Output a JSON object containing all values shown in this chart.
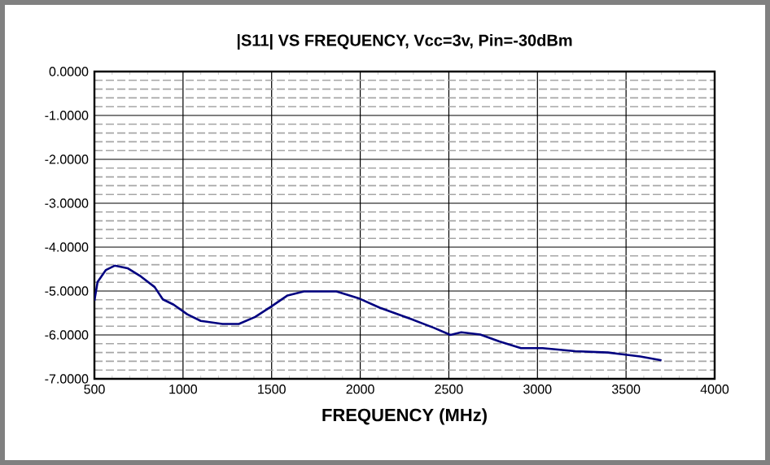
{
  "chart_data": {
    "type": "line",
    "title": "|S11| VS FREQUENCY, Vcc=3v, Pin=-30dBm",
    "xlabel": "FREQUENCY (MHz)",
    "xlim": [
      500,
      4000
    ],
    "xticks": [
      500,
      1000,
      1500,
      2000,
      2500,
      3000,
      3500,
      4000
    ],
    "ylim": [
      -7,
      0
    ],
    "yticks": [
      {
        "value": 0,
        "label": "0.0000"
      },
      {
        "value": -1,
        "label": "-1.0000"
      },
      {
        "value": -2,
        "label": "-2.0000"
      },
      {
        "value": -3,
        "label": "-3.0000"
      },
      {
        "value": -4,
        "label": "-4.0000"
      },
      {
        "value": -5,
        "label": "-5.0000"
      },
      {
        "value": -6,
        "label": "-6.0000"
      },
      {
        "value": -7,
        "label": "-7.0000"
      }
    ],
    "grid": true,
    "marker": "none",
    "line_style": "solid",
    "series": [
      {
        "color": "#000080",
        "x": [
          500,
          518,
          565,
          616,
          687,
          763,
          840,
          886,
          947,
          1024,
          1100,
          1223,
          1315,
          1407,
          1499,
          1590,
          1682,
          1866,
          1988,
          2110,
          2294,
          2417,
          2509,
          2570,
          2677,
          2785,
          2907,
          3029,
          3213,
          3397,
          3580,
          3700
        ],
        "values": [
          -5.22,
          -4.79,
          -4.52,
          -4.42,
          -4.48,
          -4.67,
          -4.91,
          -5.19,
          -5.31,
          -5.53,
          -5.68,
          -5.75,
          -5.75,
          -5.59,
          -5.35,
          -5.1,
          -5.01,
          -5.01,
          -5.16,
          -5.38,
          -5.65,
          -5.84,
          -6.0,
          -5.94,
          -5.99,
          -6.15,
          -6.3,
          -6.3,
          -6.37,
          -6.4,
          -6.49,
          -6.58
        ]
      }
    ]
  }
}
